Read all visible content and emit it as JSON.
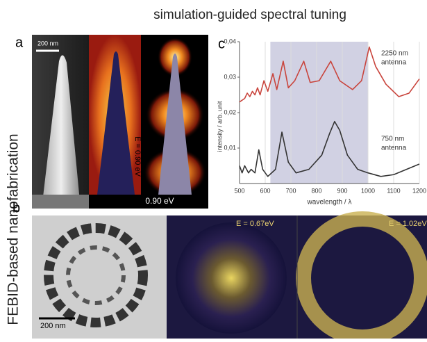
{
  "title": "simulation-guided spectral tuning",
  "side_label": "FEBID-based nanofabrication",
  "panels": {
    "a": "a",
    "b": "b",
    "c": "c"
  },
  "panel_a": {
    "scale_bar": "200 nm",
    "energy_vertical": "E = 0.90 eV",
    "energy_bar": "0.90 eV"
  },
  "panel_b": {
    "scale_bar": "200 nm",
    "map1": "E = 0.67eV",
    "map2": "E = 1.02eV"
  },
  "chart_data": {
    "type": "line",
    "ylabel": "intensity / arb. unit",
    "xlabel": "wavelength / λ",
    "xlim": [
      500,
      1200
    ],
    "xticks": [
      500,
      600,
      700,
      800,
      900,
      1000,
      1100,
      1200
    ],
    "ylim": [
      0,
      0.04
    ],
    "yticks": [
      {
        "value": 0.01,
        "label": "0,01"
      },
      {
        "value": 0.02,
        "label": "0,02"
      },
      {
        "value": 0.03,
        "label": "0,03"
      },
      {
        "value": 0.04,
        "label": "0,04"
      }
    ],
    "shaded_range": [
      620,
      1000
    ],
    "grid": true,
    "annotations": [
      "2250 nm",
      "antenna",
      "750 nm",
      "antenna"
    ],
    "series": [
      {
        "color": "#c9443c",
        "x": [
          500,
          520,
          530,
          540,
          550,
          560,
          570,
          580,
          595,
          610,
          630,
          645,
          670,
          690,
          715,
          750,
          775,
          810,
          855,
          890,
          940,
          975,
          1005,
          1030,
          1070,
          1120,
          1160,
          1200
        ],
        "values": [
          0.023,
          0.024,
          0.0255,
          0.0245,
          0.026,
          0.025,
          0.027,
          0.025,
          0.029,
          0.026,
          0.031,
          0.0265,
          0.0345,
          0.027,
          0.029,
          0.0345,
          0.0285,
          0.029,
          0.0345,
          0.029,
          0.0265,
          0.029,
          0.0385,
          0.033,
          0.028,
          0.0245,
          0.0255,
          0.0295
        ]
      },
      {
        "color": "#333333",
        "x": [
          500,
          510,
          520,
          535,
          545,
          560,
          575,
          590,
          610,
          640,
          665,
          690,
          720,
          770,
          820,
          850,
          870,
          890,
          920,
          960,
          1000,
          1050,
          1100,
          1150,
          1200
        ],
        "values": [
          0.005,
          0.003,
          0.005,
          0.003,
          0.004,
          0.003,
          0.0095,
          0.004,
          0.002,
          0.004,
          0.0145,
          0.006,
          0.003,
          0.004,
          0.008,
          0.014,
          0.0175,
          0.015,
          0.008,
          0.004,
          0.003,
          0.002,
          0.0025,
          0.004,
          0.0055
        ]
      }
    ]
  }
}
